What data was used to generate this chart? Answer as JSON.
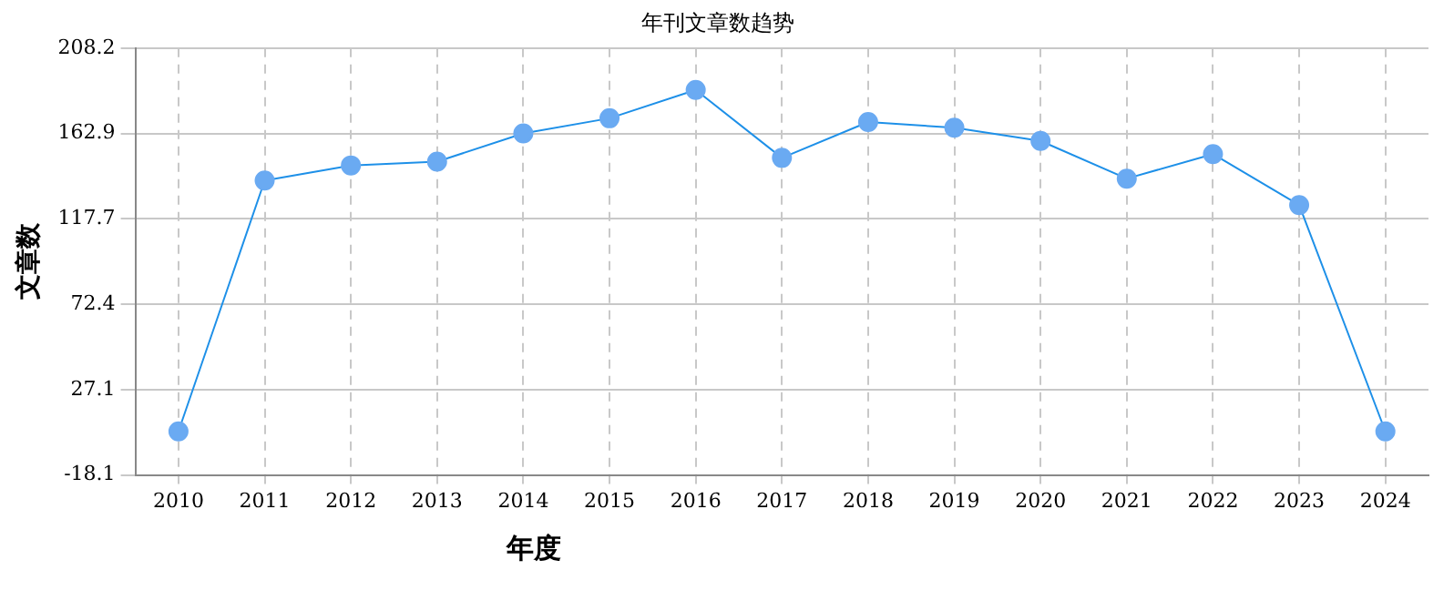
{
  "chart_data": {
    "type": "line",
    "title": "年刊文章数趋势",
    "xlabel": "年度",
    "ylabel": "文章数",
    "categories": [
      "2010",
      "2011",
      "2012",
      "2013",
      "2014",
      "2015",
      "2016",
      "2017",
      "2018",
      "2019",
      "2020",
      "2021",
      "2022",
      "2023",
      "2024"
    ],
    "series": [
      {
        "color": "#1e90e8",
        "values": [
          5,
          138,
          146,
          148,
          163,
          171,
          186,
          150,
          169,
          166,
          159,
          139,
          152,
          125,
          5
        ]
      }
    ],
    "ylim": [
      -18.1,
      208.2
    ],
    "yticks": [
      -18.1,
      27.1,
      72.4,
      117.7,
      162.9,
      208.2
    ],
    "grid": true,
    "legend": false,
    "marker": "circle",
    "line_style": "solid"
  }
}
